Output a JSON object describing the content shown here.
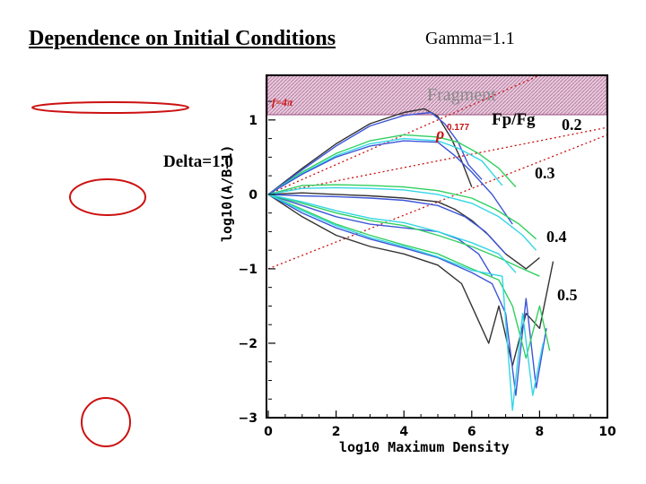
{
  "slide": {
    "title": "Dependence on Initial Conditions",
    "gamma_label": "Gamma=1.1",
    "delta_label": "Delta=1.0",
    "fpfg_label": "Fp/Fg",
    "ratio_labels": [
      "0.2",
      "0.3",
      "0.4",
      "0.5"
    ]
  },
  "colors": {
    "accent_red": "#cc1111",
    "fragment_fill": "#d7a6c7",
    "series": [
      "#333333",
      "#3d55d8",
      "#30d060",
      "#33d6e6"
    ]
  },
  "chart_data": {
    "type": "line",
    "xlabel": "log10 Maximum Density",
    "ylabel": "log10(A/B−1)",
    "xlim": [
      0,
      10
    ],
    "ylim": [
      -3,
      1.6
    ],
    "xticks": [
      "0",
      "2",
      "4",
      "6",
      "8",
      "10"
    ],
    "yticks": [
      "1",
      "0",
      "−1",
      "−2",
      "−3"
    ],
    "fragment_region": {
      "label": "Fragment",
      "y_from": 1.07,
      "y_to": 1.6
    },
    "annotations": {
      "f_label": "f=4π",
      "rho_label": "ρ",
      "rho_exponent": "0.177"
    },
    "reference_lines": [
      {
        "name": "f=4π",
        "x": [
          0,
          8
        ],
        "y": [
          0,
          1.6
        ]
      },
      {
        "name": "ρ^0.177 upper",
        "x": [
          0,
          10
        ],
        "y": [
          0,
          0.9
        ]
      },
      {
        "name": "ρ^0.177 lower",
        "x": [
          0,
          10
        ],
        "y": [
          -1,
          0.8
        ]
      }
    ],
    "series": [
      {
        "group": "0.2",
        "color": "#333333",
        "x": [
          0,
          1,
          2,
          3,
          4,
          4.6,
          5,
          5.4,
          5.7,
          6.0
        ],
        "y": [
          0,
          0.35,
          0.68,
          0.95,
          1.1,
          1.15,
          1.05,
          0.75,
          0.45,
          0.1
        ]
      },
      {
        "group": "0.2",
        "color": "#3d55d8",
        "x": [
          0,
          1,
          2,
          3,
          4,
          4.8,
          5.2,
          5.6,
          5.9,
          6.3
        ],
        "y": [
          0,
          0.33,
          0.65,
          0.92,
          1.06,
          1.1,
          0.95,
          0.7,
          0.4,
          0.2
        ]
      },
      {
        "group": "0.2",
        "color": "#30d060",
        "x": [
          0,
          1,
          2,
          3,
          4,
          5,
          5.6,
          6.2,
          6.8,
          7.3
        ],
        "y": [
          0,
          0.3,
          0.55,
          0.72,
          0.8,
          0.77,
          0.7,
          0.55,
          0.35,
          0.1
        ]
      },
      {
        "group": "0.2",
        "color": "#33d6e6",
        "x": [
          0,
          1,
          2,
          3,
          4,
          5,
          5.6,
          6.3,
          6.9
        ],
        "y": [
          0,
          0.28,
          0.52,
          0.68,
          0.75,
          0.72,
          0.62,
          0.45,
          0.12
        ]
      },
      {
        "group": "0.2",
        "color": "#3d55d8",
        "x": [
          0,
          1,
          2,
          3,
          4,
          5,
          5.5,
          6.0,
          6.6,
          7.2
        ],
        "y": [
          0,
          0.27,
          0.5,
          0.65,
          0.72,
          0.7,
          0.52,
          0.3,
          0.0,
          -0.4
        ]
      },
      {
        "group": "0.3",
        "color": "#333333",
        "x": [
          0,
          1,
          2,
          3,
          4,
          5,
          5.5,
          6,
          6.5,
          7,
          7.6,
          8.0
        ],
        "y": [
          0,
          0.02,
          0.0,
          -0.02,
          -0.05,
          -0.1,
          -0.2,
          -0.35,
          -0.55,
          -0.8,
          -1.0,
          -0.85
        ]
      },
      {
        "group": "0.3",
        "color": "#30d060",
        "x": [
          0,
          1,
          2,
          3,
          4,
          5,
          6,
          6.7,
          7.4,
          7.9
        ],
        "y": [
          0,
          0.12,
          0.13,
          0.12,
          0.1,
          0.05,
          -0.05,
          -0.2,
          -0.4,
          -0.6
        ]
      },
      {
        "group": "0.3",
        "color": "#33d6e6",
        "x": [
          0,
          1,
          2,
          3,
          4,
          5,
          6,
          6.8,
          7.5,
          7.9
        ],
        "y": [
          0,
          0.08,
          0.09,
          0.08,
          0.06,
          0.0,
          -0.12,
          -0.3,
          -0.55,
          -0.75
        ]
      },
      {
        "group": "0.3",
        "color": "#3d55d8",
        "x": [
          0,
          1,
          2,
          3,
          4,
          5,
          5.8,
          6.4,
          7.0
        ],
        "y": [
          0,
          -0.02,
          -0.03,
          -0.05,
          -0.08,
          -0.15,
          -0.3,
          -0.5,
          -0.8
        ]
      },
      {
        "group": "0.4",
        "color": "#3d55d8",
        "x": [
          0,
          1,
          2,
          3,
          4,
          5,
          5.6,
          6.2,
          6.6
        ],
        "y": [
          0,
          -0.15,
          -0.3,
          -0.4,
          -0.45,
          -0.5,
          -0.6,
          -0.8,
          -1.1
        ]
      },
      {
        "group": "0.4",
        "color": "#30d060",
        "x": [
          0,
          1,
          2,
          3,
          4,
          5,
          6,
          6.8,
          7.5,
          8.0
        ],
        "y": [
          0,
          -0.12,
          -0.25,
          -0.35,
          -0.42,
          -0.55,
          -0.7,
          -0.85,
          -1.0,
          -1.1
        ]
      },
      {
        "group": "0.4",
        "color": "#33d6e6",
        "x": [
          0,
          1,
          2,
          3,
          4,
          5,
          6,
          6.8,
          7.3
        ],
        "y": [
          0,
          -0.1,
          -0.22,
          -0.32,
          -0.38,
          -0.5,
          -0.65,
          -0.8,
          -1.05
        ]
      },
      {
        "group": "0.5",
        "color": "#333333",
        "x": [
          0,
          1,
          2,
          3,
          4,
          5,
          5.7,
          6.1,
          6.5,
          6.8,
          7.2,
          7.6,
          8.0,
          8.4
        ],
        "y": [
          0,
          -0.3,
          -0.55,
          -0.7,
          -0.8,
          -0.95,
          -1.2,
          -1.6,
          -2.0,
          -1.5,
          -2.3,
          -1.6,
          -1.8,
          -0.9
        ]
      },
      {
        "group": "0.5",
        "color": "#3d55d8",
        "x": [
          0,
          1,
          2,
          3,
          4,
          5,
          6,
          6.6,
          7.0,
          7.3,
          7.6,
          7.9,
          8.2
        ],
        "y": [
          0,
          -0.25,
          -0.45,
          -0.6,
          -0.72,
          -0.85,
          -1.05,
          -1.2,
          -1.6,
          -2.7,
          -1.4,
          -2.6,
          -1.8
        ]
      },
      {
        "group": "0.5",
        "color": "#30d060",
        "x": [
          0,
          1,
          2,
          3,
          4,
          5,
          6,
          6.8,
          7.2,
          7.6,
          8.0,
          8.3
        ],
        "y": [
          0,
          -0.2,
          -0.4,
          -0.55,
          -0.68,
          -0.8,
          -1.0,
          -1.15,
          -1.5,
          -2.2,
          -1.5,
          -2.1
        ]
      },
      {
        "group": "0.5",
        "color": "#33d6e6",
        "x": [
          0,
          1,
          2,
          3,
          4,
          5,
          6,
          6.9,
          7.2,
          7.5,
          7.8,
          8.1
        ],
        "y": [
          0,
          -0.22,
          -0.42,
          -0.58,
          -0.7,
          -0.84,
          -1.02,
          -1.1,
          -2.9,
          -1.6,
          -2.7,
          -2.0
        ]
      }
    ]
  }
}
